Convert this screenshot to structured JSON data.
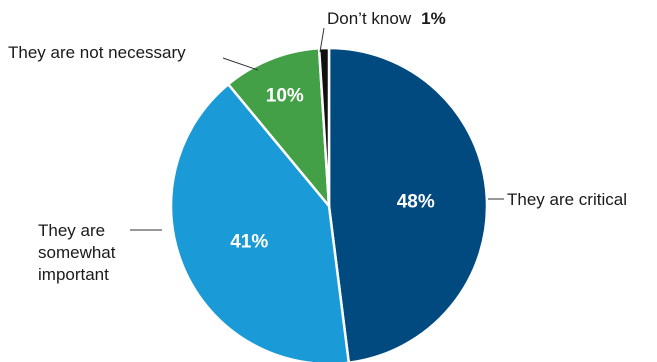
{
  "chart_data": {
    "type": "pie",
    "start_angle_deg": 0,
    "direction": "clockwise",
    "slices": [
      {
        "label": "They are critical",
        "value": 48,
        "value_label": "48%",
        "color": "#004a80"
      },
      {
        "label": "They are somewhat important",
        "label_lines": [
          "They are",
          "somewhat",
          "important"
        ],
        "value": 41,
        "value_label": "41%",
        "color": "#1a9ad6"
      },
      {
        "label": "They are not necessary",
        "value": 10,
        "value_label": "10%",
        "color": "#43a047"
      },
      {
        "label": "Don’t know",
        "value": 1,
        "value_label": "1%",
        "color": "#111111"
      }
    ]
  }
}
